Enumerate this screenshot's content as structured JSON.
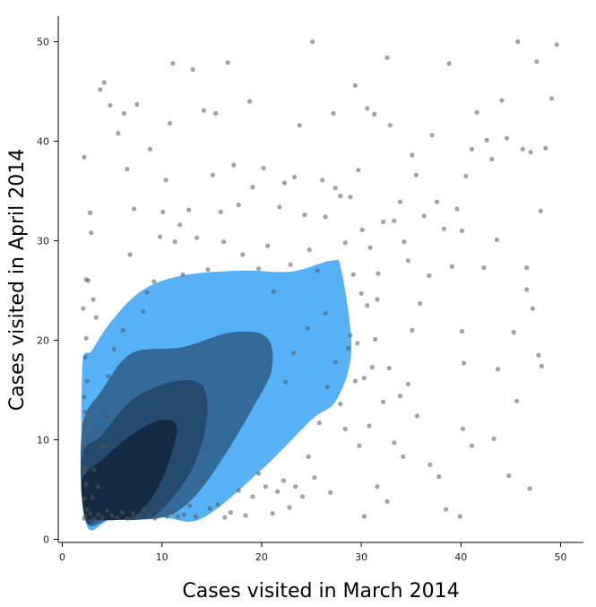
{
  "chart_data": {
    "type": "scatter",
    "title": "",
    "xlabel": "Cases visited in March 2014",
    "ylabel": "Cases visited in April 2014",
    "xlim": [
      0,
      52
    ],
    "ylim": [
      0,
      52
    ],
    "xticks": [
      "0",
      "10",
      "20",
      "30",
      "40",
      "50"
    ],
    "yticks": [
      "0",
      "10",
      "20",
      "30",
      "40",
      "50"
    ],
    "grid": false,
    "legend": "none",
    "point_color": "#555555",
    "density_levels": [
      {
        "level": 1,
        "color": "#56b1f7",
        "outline": [
          [
            2,
            17
          ],
          [
            3,
            19
          ],
          [
            5,
            22
          ],
          [
            8,
            25
          ],
          [
            12,
            26.5
          ],
          [
            18,
            27
          ],
          [
            23,
            26.9
          ],
          [
            27,
            28
          ],
          [
            28,
            27
          ],
          [
            29,
            19
          ],
          [
            27.5,
            14
          ],
          [
            25,
            12
          ],
          [
            20,
            7
          ],
          [
            14,
            2.1
          ],
          [
            10,
            2.2
          ],
          [
            5,
            2
          ],
          [
            2.3,
            2
          ]
        ]
      },
      {
        "level": 2,
        "color": "#336a98",
        "outline": [
          [
            2,
            11.2
          ],
          [
            4,
            15
          ],
          [
            7,
            18.7
          ],
          [
            12,
            19.3
          ],
          [
            17,
            20.8
          ],
          [
            20.5,
            20.3
          ],
          [
            21,
            17
          ],
          [
            19,
            13
          ],
          [
            16,
            8
          ],
          [
            13,
            4
          ],
          [
            10,
            2.2
          ],
          [
            5,
            2
          ],
          [
            2.3,
            2
          ]
        ]
      },
      {
        "level": 3,
        "color": "#244a6e",
        "outline": [
          [
            2,
            8.5
          ],
          [
            4,
            10.5
          ],
          [
            7,
            14
          ],
          [
            11,
            15.8
          ],
          [
            14,
            15.5
          ],
          [
            14.5,
            12
          ],
          [
            13,
            7
          ],
          [
            10,
            3
          ],
          [
            8,
            2
          ],
          [
            4,
            2
          ],
          [
            2.3,
            2
          ]
        ]
      },
      {
        "level": 4,
        "color": "#132b43",
        "outline": [
          [
            2,
            6
          ],
          [
            4,
            8
          ],
          [
            7,
            10.5
          ],
          [
            10,
            12
          ],
          [
            11.5,
            11
          ],
          [
            10,
            6
          ],
          [
            8,
            3
          ],
          [
            6,
            2
          ],
          [
            3,
            2
          ],
          [
            2.3,
            2.3
          ]
        ]
      }
    ],
    "points": [
      [
        2.2,
        2.1
      ],
      [
        2.3,
        2.3
      ],
      [
        2.5,
        3
      ],
      [
        2.2,
        4.1
      ],
      [
        2.4,
        5.5
      ],
      [
        2.2,
        6.8
      ],
      [
        2.3,
        7.2
      ],
      [
        2.1,
        8.4
      ],
      [
        2.2,
        9.3
      ],
      [
        2.4,
        10.1
      ],
      [
        2.2,
        11.5
      ],
      [
        2.3,
        12.8
      ],
      [
        2.2,
        14.3
      ],
      [
        2.5,
        15.9
      ],
      [
        2.3,
        18.3
      ],
      [
        2.4,
        20.2
      ],
      [
        2.1,
        23.2
      ],
      [
        2.4,
        26.1
      ],
      [
        2.2,
        38.4
      ],
      [
        2.6,
        26.0
      ],
      [
        2.9,
        30.8
      ],
      [
        2.8,
        32.8
      ],
      [
        3.1,
        24.1
      ],
      [
        3.4,
        22.3
      ],
      [
        3.8,
        45.2
      ],
      [
        4.2,
        45.9
      ],
      [
        4.8,
        43.6
      ],
      [
        5.6,
        40.8
      ],
      [
        6.2,
        42.8
      ],
      [
        6.5,
        37.2
      ],
      [
        6.8,
        28.6
      ],
      [
        7.2,
        33.2
      ],
      [
        7.5,
        43.7
      ],
      [
        8.1,
        22.9
      ],
      [
        8.5,
        24.8
      ],
      [
        8.8,
        39.2
      ],
      [
        9.2,
        25.9
      ],
      [
        9.8,
        30.4
      ],
      [
        10.1,
        32.9
      ],
      [
        10.4,
        36.1
      ],
      [
        10.8,
        41.8
      ],
      [
        11.1,
        47.8
      ],
      [
        11.3,
        29.9
      ],
      [
        11.8,
        31.6
      ],
      [
        12.1,
        26.6
      ],
      [
        12.7,
        33.1
      ],
      [
        13.1,
        47.2
      ],
      [
        13.5,
        30.3
      ],
      [
        14.2,
        43.1
      ],
      [
        14.6,
        27.1
      ],
      [
        15.1,
        36.6
      ],
      [
        15.4,
        42.8
      ],
      [
        15.9,
        32.9
      ],
      [
        16.2,
        29.9
      ],
      [
        16.6,
        47.9
      ],
      [
        17.2,
        37.6
      ],
      [
        17.7,
        33.6
      ],
      [
        18.1,
        28.6
      ],
      [
        18.8,
        44.0
      ],
      [
        19.1,
        35.4
      ],
      [
        19.7,
        27.2
      ],
      [
        20.2,
        37.3
      ],
      [
        20.6,
        29.5
      ],
      [
        21.2,
        24.9
      ],
      [
        21.8,
        33.4
      ],
      [
        22.3,
        35.8
      ],
      [
        22.9,
        27.6
      ],
      [
        23.3,
        36.4
      ],
      [
        23.8,
        41.6
      ],
      [
        24.3,
        32.6
      ],
      [
        24.8,
        29.1
      ],
      [
        25.1,
        50.0
      ],
      [
        25.6,
        27.0
      ],
      [
        26.1,
        36.1
      ],
      [
        26.4,
        32.4
      ],
      [
        27.2,
        42.8
      ],
      [
        27.4,
        35.3
      ],
      [
        27.9,
        34.5
      ],
      [
        28.4,
        29.8
      ],
      [
        28.9,
        34.4
      ],
      [
        29.4,
        45.6
      ],
      [
        29.7,
        37.1
      ],
      [
        30.1,
        31.1
      ],
      [
        30.6,
        43.3
      ],
      [
        30.9,
        29.3
      ],
      [
        31.3,
        42.7
      ],
      [
        31.7,
        26.7
      ],
      [
        32.2,
        31.9
      ],
      [
        32.6,
        48.4
      ],
      [
        32.9,
        41.6
      ],
      [
        33.3,
        32.0
      ],
      [
        33.9,
        33.9
      ],
      [
        34.3,
        29.9
      ],
      [
        34.7,
        28.0
      ],
      [
        35.1,
        38.6
      ],
      [
        35.5,
        36.6
      ],
      [
        35.9,
        23.7
      ],
      [
        36.3,
        32.5
      ],
      [
        36.8,
        26.5
      ],
      [
        37.1,
        40.6
      ],
      [
        37.6,
        33.9
      ],
      [
        38.3,
        31.2
      ],
      [
        38.8,
        47.8
      ],
      [
        39.1,
        27.4
      ],
      [
        39.6,
        33.2
      ],
      [
        40.1,
        31.0
      ],
      [
        40.5,
        36.5
      ],
      [
        41.1,
        39.2
      ],
      [
        41.6,
        42.9
      ],
      [
        42.3,
        27.3
      ],
      [
        42.6,
        40.1
      ],
      [
        43.1,
        38.2
      ],
      [
        43.6,
        30.1
      ],
      [
        44.1,
        44.1
      ],
      [
        44.6,
        40.3
      ],
      [
        45.3,
        20.8
      ],
      [
        45.7,
        50.0
      ],
      [
        46.2,
        39.2
      ],
      [
        46.6,
        25.1
      ],
      [
        47.0,
        38.9
      ],
      [
        47.6,
        48.0
      ],
      [
        48.0,
        33.0
      ],
      [
        48.5,
        39.3
      ],
      [
        49.1,
        44.3
      ],
      [
        49.6,
        49.7
      ],
      [
        47.2,
        23.2
      ],
      [
        47.8,
        18.5
      ],
      [
        46.6,
        27.3
      ],
      [
        48.1,
        17.4
      ],
      [
        46.9,
        5.1
      ],
      [
        45.6,
        13.9
      ],
      [
        44.8,
        6.4
      ],
      [
        43.7,
        17.1
      ],
      [
        43.3,
        10.1
      ],
      [
        41.1,
        9.4
      ],
      [
        40.2,
        11.1
      ],
      [
        40.3,
        17.7
      ],
      [
        40.1,
        20.9
      ],
      [
        39.9,
        2.3
      ],
      [
        38.5,
        3.0
      ],
      [
        37.8,
        6.3
      ],
      [
        36.9,
        7.5
      ],
      [
        35.6,
        12.4
      ],
      [
        35.1,
        21.0
      ],
      [
        34.7,
        15.6
      ],
      [
        34.2,
        8.3
      ],
      [
        33.9,
        14.4
      ],
      [
        33.3,
        9.7
      ],
      [
        32.8,
        17.2
      ],
      [
        32.6,
        3.8
      ],
      [
        31.6,
        5.3
      ],
      [
        31.1,
        17.3
      ],
      [
        30.8,
        11.4
      ],
      [
        30.3,
        2.3
      ],
      [
        29.8,
        9.4
      ],
      [
        29.4,
        15.9
      ],
      [
        28.7,
        19.2
      ],
      [
        28.4,
        11.1
      ],
      [
        27.9,
        13.6
      ],
      [
        27.4,
        17.8
      ],
      [
        26.9,
        4.7
      ],
      [
        26.6,
        15.3
      ],
      [
        25.8,
        11.7
      ],
      [
        25.3,
        6.2
      ],
      [
        24.7,
        8.3
      ],
      [
        24.1,
        4.3
      ],
      [
        23.4,
        5.3
      ],
      [
        22.8,
        3.2
      ],
      [
        22.2,
        5.9
      ],
      [
        21.6,
        4.8
      ],
      [
        21.1,
        2.6
      ],
      [
        20.4,
        5.3
      ],
      [
        19.7,
        6.6
      ],
      [
        19.1,
        4.3
      ],
      [
        18.4,
        2.4
      ],
      [
        17.7,
        4.9
      ],
      [
        16.9,
        2.7
      ],
      [
        16.3,
        2.2
      ],
      [
        15.6,
        3.5
      ],
      [
        14.8,
        3.1
      ],
      [
        14.1,
        5.9
      ],
      [
        13.4,
        2.3
      ],
      [
        12.8,
        3.4
      ],
      [
        12.2,
        2.5
      ],
      [
        11.6,
        2.3
      ],
      [
        11.1,
        2.7
      ],
      [
        10.5,
        2.3
      ],
      [
        9.9,
        3.1
      ],
      [
        9.3,
        2.1
      ],
      [
        8.7,
        2.4
      ],
      [
        8.2,
        3.0
      ],
      [
        7.6,
        2.2
      ],
      [
        7.1,
        2.6
      ],
      [
        6.5,
        2.1
      ],
      [
        6.0,
        2.7
      ],
      [
        5.5,
        2.2
      ],
      [
        5.0,
        2.4
      ],
      [
        4.5,
        2.9
      ],
      [
        4.0,
        2.2
      ],
      [
        3.6,
        2.5
      ],
      [
        3.2,
        2.1
      ],
      [
        2.8,
        2.6
      ],
      [
        3.0,
        4.2
      ],
      [
        3.6,
        5.3
      ],
      [
        3.2,
        7.0
      ],
      [
        4.1,
        9.4
      ],
      [
        3.4,
        10.8
      ],
      [
        4.4,
        12.3
      ],
      [
        3.8,
        14.2
      ],
      [
        4.6,
        16.4
      ],
      [
        5.2,
        19.1
      ],
      [
        6.1,
        21.0
      ],
      [
        30.0,
        24.7
      ],
      [
        29.6,
        19.7
      ],
      [
        30.3,
        16.2
      ],
      [
        31.4,
        20.1
      ],
      [
        32.2,
        13.8
      ],
      [
        28.9,
        20.5
      ],
      [
        30.6,
        23.5
      ],
      [
        29.2,
        26.6
      ],
      [
        31.6,
        24.1
      ],
      [
        26.4,
        22.7
      ],
      [
        24.6,
        21.2
      ],
      [
        23.2,
        18.7
      ],
      [
        22.4,
        15.8
      ]
    ]
  }
}
